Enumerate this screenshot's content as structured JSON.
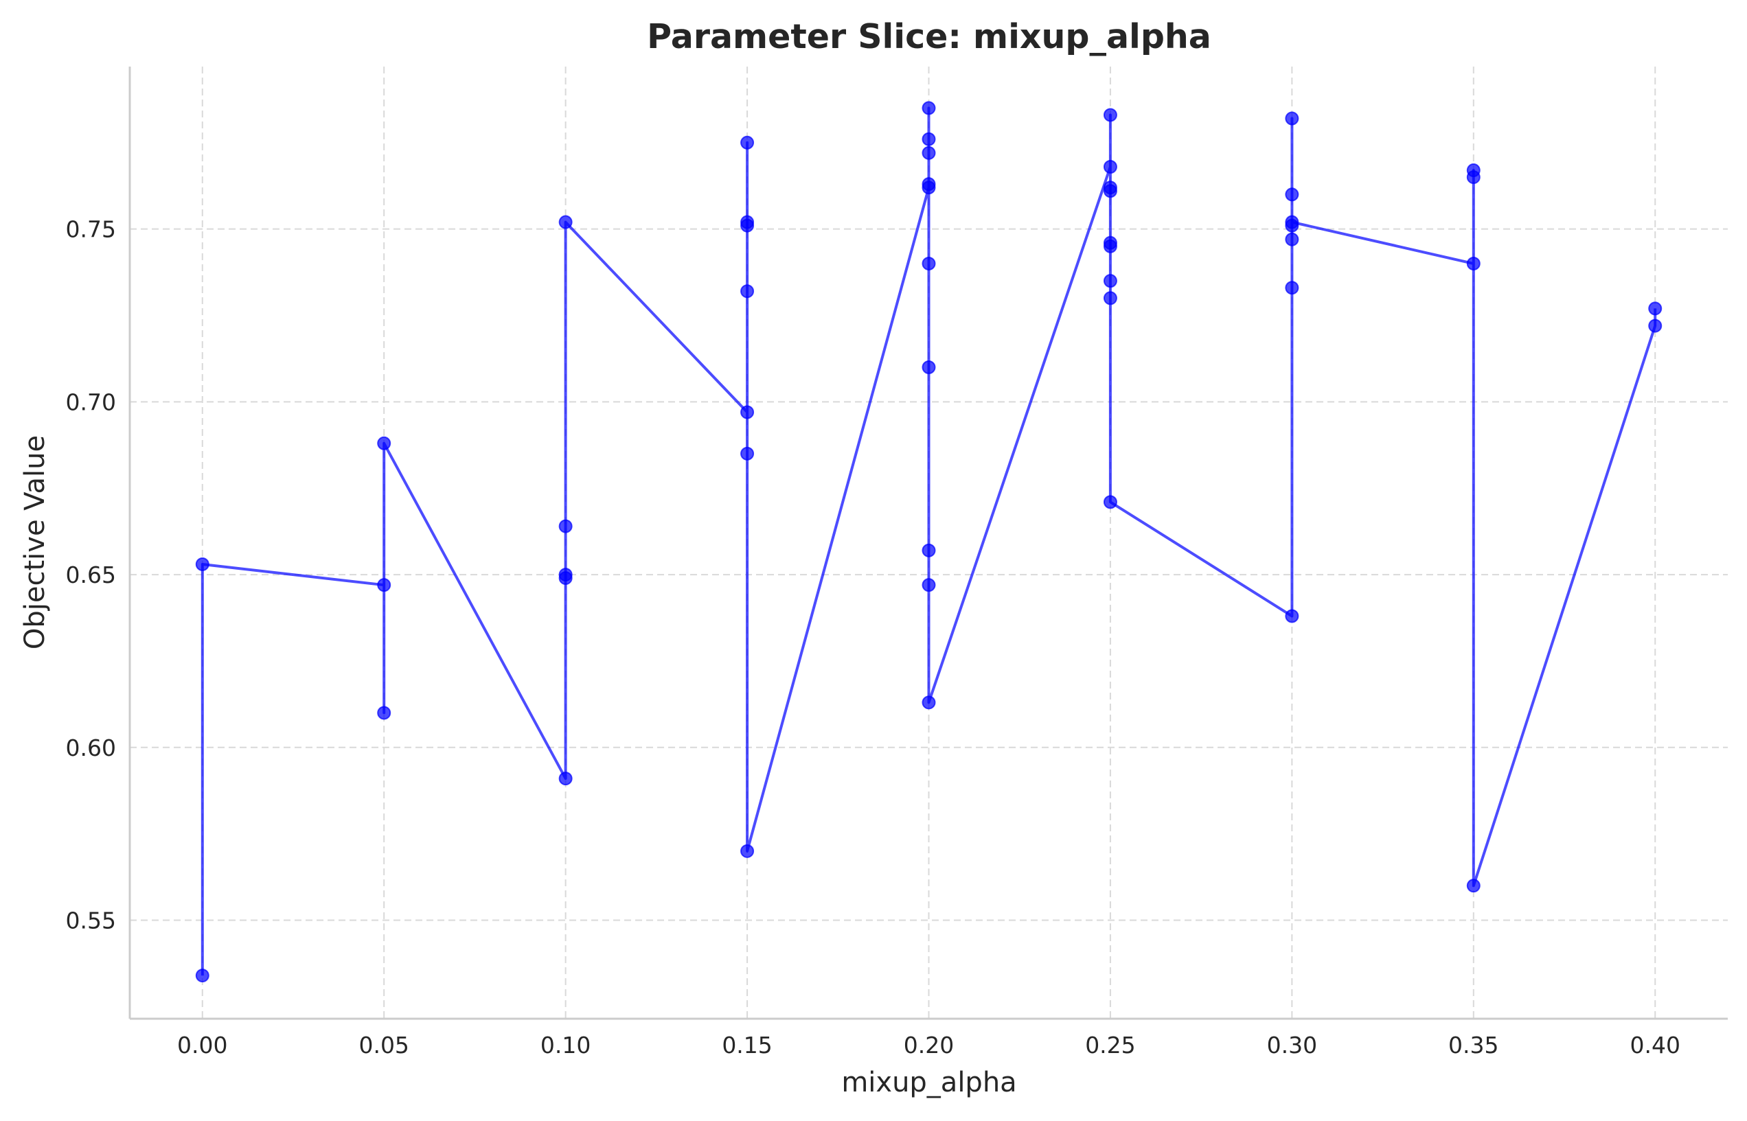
{
  "chart_data": {
    "type": "line",
    "title": "Parameter Slice: mixup_alpha",
    "xlabel": "mixup_alpha",
    "ylabel": "Objective Value",
    "xlim": [
      -0.02,
      0.42
    ],
    "ylim": [
      0.5215,
      0.797
    ],
    "x_ticks": [
      "0.00",
      "0.05",
      "0.10",
      "0.15",
      "0.20",
      "0.25",
      "0.30",
      "0.35",
      "0.40"
    ],
    "y_ticks": [
      "0.55",
      "0.60",
      "0.65",
      "0.70",
      "0.75"
    ],
    "grid": true,
    "grid_style": "dashed",
    "marker": "circle",
    "color": "#0000ff",
    "series": [
      {
        "points": [
          [
            0.0,
            0.534
          ],
          [
            0.0,
            0.653
          ],
          [
            0.05,
            0.647
          ],
          [
            0.05,
            0.61
          ],
          [
            0.05,
            0.688
          ],
          [
            0.1,
            0.591
          ],
          [
            0.1,
            0.649
          ],
          [
            0.1,
            0.65
          ],
          [
            0.1,
            0.664
          ],
          [
            0.1,
            0.752
          ],
          [
            0.15,
            0.697
          ],
          [
            0.15,
            0.685
          ],
          [
            0.15,
            0.732
          ],
          [
            0.15,
            0.751
          ],
          [
            0.15,
            0.752
          ],
          [
            0.15,
            0.775
          ],
          [
            0.15,
            0.57
          ],
          [
            0.2,
            0.762
          ],
          [
            0.2,
            0.763
          ],
          [
            0.2,
            0.74
          ],
          [
            0.2,
            0.71
          ],
          [
            0.2,
            0.657
          ],
          [
            0.2,
            0.647
          ],
          [
            0.2,
            0.772
          ],
          [
            0.2,
            0.776
          ],
          [
            0.2,
            0.785
          ],
          [
            0.2,
            0.613
          ],
          [
            0.25,
            0.768
          ],
          [
            0.25,
            0.783
          ],
          [
            0.25,
            0.761
          ],
          [
            0.25,
            0.762
          ],
          [
            0.25,
            0.746
          ],
          [
            0.25,
            0.745
          ],
          [
            0.25,
            0.735
          ],
          [
            0.25,
            0.73
          ],
          [
            0.25,
            0.671
          ],
          [
            0.3,
            0.638
          ],
          [
            0.3,
            0.733
          ],
          [
            0.3,
            0.747
          ],
          [
            0.3,
            0.751
          ],
          [
            0.3,
            0.76
          ],
          [
            0.3,
            0.782
          ],
          [
            0.3,
            0.752
          ],
          [
            0.35,
            0.74
          ],
          [
            0.35,
            0.765
          ],
          [
            0.35,
            0.767
          ],
          [
            0.35,
            0.56
          ],
          [
            0.4,
            0.722
          ],
          [
            0.4,
            0.727
          ]
        ]
      }
    ]
  }
}
